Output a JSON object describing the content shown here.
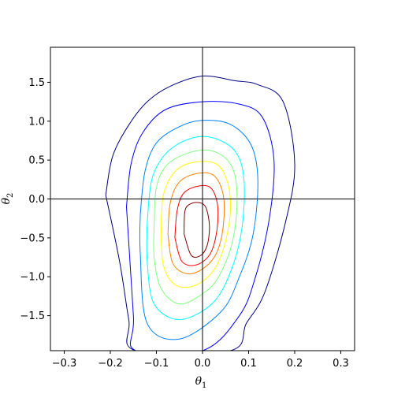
{
  "chart_data": {
    "type": "contour",
    "xlabel_main": "θ",
    "xlabel_sub": "1",
    "ylabel_main": "θ",
    "ylabel_sub": "2",
    "xlim": [
      -0.33,
      0.33
    ],
    "ylim": [
      -1.95,
      1.95
    ],
    "xticks": [
      -0.3,
      -0.2,
      -0.1,
      0.0,
      0.1,
      0.2,
      0.3
    ],
    "xtick_labels": [
      "−0.3",
      "−0.2",
      "−0.1",
      "0.0",
      "0.1",
      "0.2",
      "0.3"
    ],
    "yticks": [
      1.5,
      1.0,
      0.5,
      0.0,
      -0.5,
      -1.0,
      -1.5
    ],
    "ytick_labels": [
      "1.5",
      "1.0",
      "0.5",
      "0.0",
      "−0.5",
      "−1.0",
      "−1.5"
    ],
    "reference_lines": {
      "x": 0.0,
      "y": 0.0,
      "color": "#000000"
    },
    "grid": false,
    "legend": "none",
    "contours": [
      {
        "level": 1,
        "color": "#00007f",
        "points": [
          [
            -0.21,
            0.05
          ],
          [
            -0.195,
            0.55
          ],
          [
            -0.16,
            0.95
          ],
          [
            -0.12,
            1.25
          ],
          [
            -0.07,
            1.45
          ],
          [
            0.0,
            1.58
          ],
          [
            0.07,
            1.52
          ],
          [
            0.12,
            1.47
          ],
          [
            0.175,
            1.25
          ],
          [
            0.2,
            0.45
          ],
          [
            0.18,
            -0.3
          ],
          [
            0.135,
            -1.2
          ],
          [
            0.095,
            -1.6
          ],
          [
            0.06,
            -1.95
          ],
          [
            -0.145,
            -1.95
          ],
          [
            -0.16,
            -1.55
          ],
          [
            -0.18,
            -0.8
          ],
          [
            -0.21,
            0.05
          ]
        ]
      },
      {
        "level": 2,
        "color": "#0000ff",
        "points": [
          [
            -0.165,
            -0.1
          ],
          [
            -0.155,
            0.45
          ],
          [
            -0.13,
            0.85
          ],
          [
            -0.08,
            1.15
          ],
          [
            0.0,
            1.25
          ],
          [
            0.08,
            1.22
          ],
          [
            0.13,
            1.05
          ],
          [
            0.155,
            0.5
          ],
          [
            0.145,
            -0.25
          ],
          [
            0.115,
            -1.0
          ],
          [
            0.08,
            -1.5
          ],
          [
            0.0,
            -1.95
          ],
          [
            -0.145,
            -1.95
          ],
          [
            -0.15,
            -1.5
          ],
          [
            -0.165,
            -0.1
          ]
        ]
      },
      {
        "level": 3,
        "color": "#0080ff",
        "points": [
          [
            -0.135,
            -0.2
          ],
          [
            -0.125,
            0.35
          ],
          [
            -0.1,
            0.72
          ],
          [
            -0.05,
            0.93
          ],
          [
            0.0,
            1.01
          ],
          [
            0.06,
            0.96
          ],
          [
            0.105,
            0.7
          ],
          [
            0.12,
            0.25
          ],
          [
            0.11,
            -0.45
          ],
          [
            0.08,
            -1.0
          ],
          [
            0.04,
            -1.45
          ],
          [
            -0.05,
            -1.8
          ],
          [
            -0.12,
            -1.6
          ],
          [
            -0.135,
            -0.7
          ],
          [
            -0.135,
            -0.2
          ]
        ]
      },
      {
        "level": 4,
        "color": "#00ffff",
        "points": [
          [
            -0.12,
            -0.3
          ],
          [
            -0.11,
            0.25
          ],
          [
            -0.08,
            0.58
          ],
          [
            -0.03,
            0.77
          ],
          [
            0.02,
            0.79
          ],
          [
            0.07,
            0.62
          ],
          [
            0.09,
            0.25
          ],
          [
            0.085,
            -0.4
          ],
          [
            0.06,
            -0.95
          ],
          [
            0.02,
            -1.35
          ],
          [
            -0.05,
            -1.55
          ],
          [
            -0.105,
            -1.35
          ],
          [
            -0.12,
            -0.8
          ],
          [
            -0.12,
            -0.3
          ]
        ]
      },
      {
        "level": 5,
        "color": "#80ff7f",
        "points": [
          [
            -0.105,
            -0.35
          ],
          [
            -0.1,
            0.15
          ],
          [
            -0.075,
            0.45
          ],
          [
            -0.02,
            0.61
          ],
          [
            0.03,
            0.6
          ],
          [
            0.065,
            0.4
          ],
          [
            0.075,
            0.0
          ],
          [
            0.065,
            -0.55
          ],
          [
            0.035,
            -1.0
          ],
          [
            0.0,
            -1.22
          ],
          [
            -0.05,
            -1.35
          ],
          [
            -0.09,
            -1.15
          ],
          [
            -0.105,
            -0.75
          ],
          [
            -0.105,
            -0.35
          ]
        ]
      },
      {
        "level": 6,
        "color": "#ffff00",
        "points": [
          [
            -0.09,
            -0.4
          ],
          [
            -0.085,
            0.05
          ],
          [
            -0.06,
            0.35
          ],
          [
            -0.02,
            0.47
          ],
          [
            0.03,
            0.45
          ],
          [
            0.055,
            0.2
          ],
          [
            0.06,
            -0.2
          ],
          [
            0.045,
            -0.65
          ],
          [
            0.02,
            -0.95
          ],
          [
            -0.02,
            -1.12
          ],
          [
            -0.06,
            -1.1
          ],
          [
            -0.085,
            -0.85
          ],
          [
            -0.09,
            -0.4
          ]
        ]
      },
      {
        "level": 7,
        "color": "#ff8000",
        "points": [
          [
            -0.075,
            -0.45
          ],
          [
            -0.07,
            -0.05
          ],
          [
            -0.05,
            0.22
          ],
          [
            -0.01,
            0.33
          ],
          [
            0.025,
            0.3
          ],
          [
            0.045,
            0.05
          ],
          [
            0.045,
            -0.35
          ],
          [
            0.03,
            -0.7
          ],
          [
            0.0,
            -0.9
          ],
          [
            -0.035,
            -0.96
          ],
          [
            -0.065,
            -0.82
          ],
          [
            -0.075,
            -0.45
          ]
        ]
      },
      {
        "level": 8,
        "color": "#ff0000",
        "points": [
          [
            -0.06,
            -0.5
          ],
          [
            -0.055,
            -0.15
          ],
          [
            -0.04,
            0.08
          ],
          [
            -0.005,
            0.17
          ],
          [
            0.02,
            0.13
          ],
          [
            0.033,
            -0.1
          ],
          [
            0.03,
            -0.45
          ],
          [
            0.015,
            -0.72
          ],
          [
            -0.015,
            -0.85
          ],
          [
            -0.045,
            -0.8
          ],
          [
            -0.06,
            -0.5
          ]
        ]
      },
      {
        "level": 9,
        "color": "#800000",
        "points": [
          [
            -0.04,
            -0.45
          ],
          [
            -0.038,
            -0.15
          ],
          [
            -0.025,
            -0.06
          ],
          [
            -0.005,
            -0.05
          ],
          [
            0.008,
            -0.12
          ],
          [
            0.015,
            -0.35
          ],
          [
            0.01,
            -0.6
          ],
          [
            -0.005,
            -0.73
          ],
          [
            -0.025,
            -0.72
          ],
          [
            -0.04,
            -0.45
          ]
        ]
      }
    ]
  }
}
